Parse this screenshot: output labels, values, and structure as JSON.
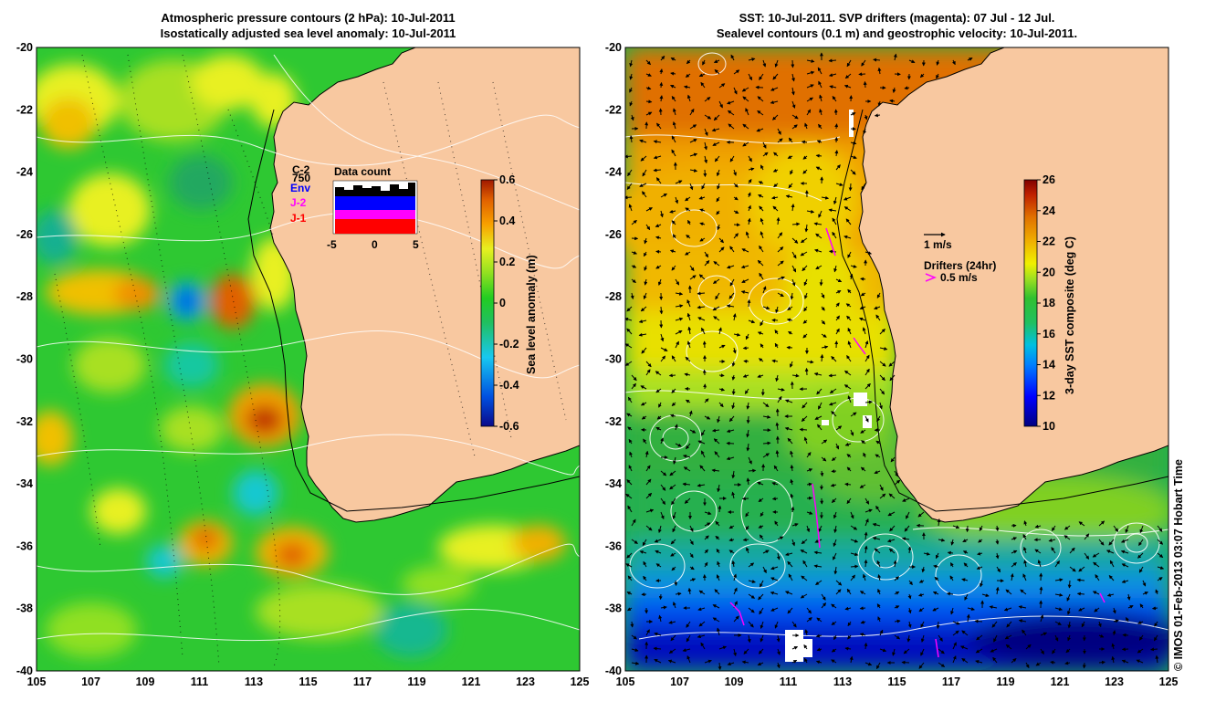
{
  "left_panel": {
    "title_line1": "Atmospheric pressure contours (2 hPa): 10-Jul-2011",
    "title_line2": "Isostatically adjusted sea level anomaly: 10-Jul-2011",
    "colorbar": {
      "label": "Sea level anomaly (m)",
      "ticks": [
        "0.6",
        "0.4",
        "0.2",
        "0",
        "-0.2",
        "-0.4",
        "-0.6"
      ],
      "range": [
        -0.6,
        0.6
      ]
    },
    "data_count": {
      "title": "Data count",
      "satellites": [
        {
          "name": "C-2",
          "color": "#000000"
        },
        {
          "name": "Env",
          "color": "#0000ff"
        },
        {
          "name": "J-2",
          "color": "#ff00ff"
        },
        {
          "name": "J-1",
          "color": "#ff0000"
        }
      ],
      "count_label": "750",
      "x_ticks": [
        "-5",
        "0",
        "5"
      ]
    }
  },
  "right_panel": {
    "title_line1": "SST: 10-Jul-2011. SVP drifters (magenta): 07 Jul - 12 Jul.",
    "title_line2": "Sealevel contours (0.1 m) and geostrophic velocity: 10-Jul-2011.",
    "colorbar": {
      "label": "3-day SST composite (deg C)",
      "ticks": [
        "26",
        "24",
        "22",
        "20",
        "18",
        "16",
        "14",
        "12",
        "10"
      ],
      "range": [
        10,
        26
      ]
    },
    "velocity_key": "1 m/s",
    "drifters_title": "Drifters (24hr)",
    "drifters_key": "0.5 m/s"
  },
  "axes": {
    "lat_ticks": [
      "-20",
      "-22",
      "-24",
      "-26",
      "-28",
      "-30",
      "-32",
      "-34",
      "-36",
      "-38",
      "-40"
    ],
    "lon_ticks": [
      "105",
      "107",
      "109",
      "111",
      "113",
      "115",
      "117",
      "119",
      "121",
      "123",
      "125"
    ],
    "lon_range": [
      105,
      125
    ],
    "lat_range": [
      -40,
      -20
    ]
  },
  "credit": "© IMOS 01-Feb-2013 03:07 Hobart Time",
  "colors": {
    "land": "#f8c8a0",
    "sla_ramp": [
      "#0a0a8a",
      "#0050e0",
      "#18c8f0",
      "#20c060",
      "#22cc22",
      "#90e020",
      "#e8f020",
      "#f8a000",
      "#e06000",
      "#b02000"
    ],
    "sst_ramp": [
      "#000080",
      "#0000ff",
      "#0080ff",
      "#00c0e0",
      "#20c060",
      "#30c030",
      "#a0e020",
      "#f0f000",
      "#f0b000",
      "#e07000",
      "#c02000",
      "#900000"
    ]
  }
}
